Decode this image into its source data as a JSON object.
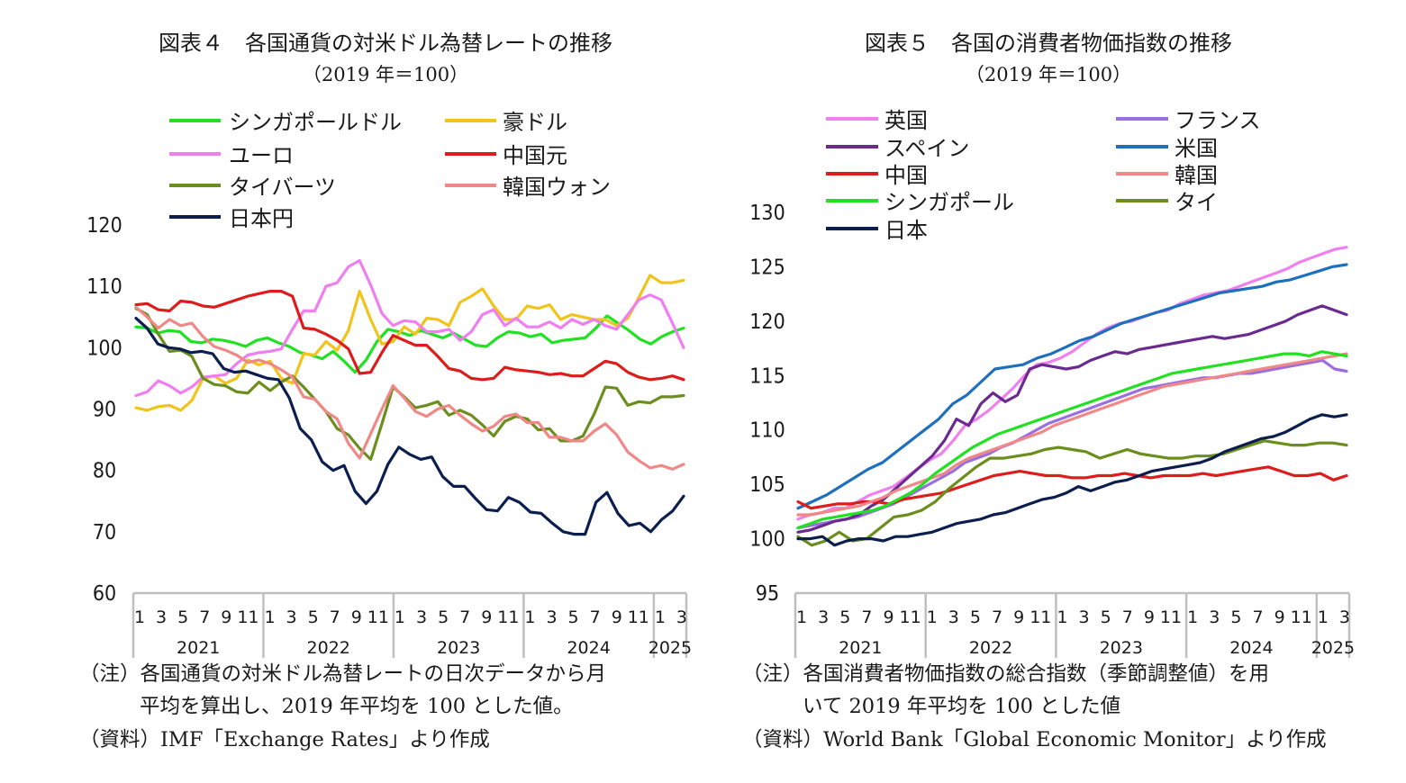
{
  "chart_data": [
    {
      "type": "line",
      "title": "図表４　各国通貨の対米ドル為替レートの推移",
      "subtitle": "（2019 年＝100）",
      "ylim": [
        60,
        120
      ],
      "yticks": [
        "60",
        "70",
        "80",
        "90",
        "100",
        "110",
        "120"
      ],
      "grid": false,
      "legend_position": "top",
      "month_labels": [
        "1",
        "3",
        "5",
        "7",
        "9",
        "11",
        "1",
        "3",
        "5",
        "7",
        "9",
        "11",
        "1",
        "3",
        "5",
        "7",
        "9",
        "11",
        "1",
        "3",
        "5",
        "7",
        "9",
        "11",
        "1",
        "3"
      ],
      "years": [
        "2021",
        "2022",
        "2023",
        "2024",
        "2025"
      ],
      "notes": [
        "（注）各国通貨の対米ドル為替レートの日次データから月",
        "平均を算出し、2019 年平均を 100 とした値。",
        "（資料）IMF「Exchange Rates」より作成"
      ],
      "series": [
        {
          "name": "シンガポールドル",
          "color": "#22e022",
          "values": [
            103.4,
            103.2,
            102.4,
            102.8,
            102.6,
            101.0,
            100.8,
            101.4,
            101.2,
            100.8,
            100.2,
            101.2,
            101.6,
            100.8,
            100.2,
            99.2,
            98.8,
            98.2,
            99.4,
            97.8,
            96.0,
            98.0,
            101.0,
            103.0,
            102.6,
            102.0,
            102.8,
            102.2,
            101.6,
            102.4,
            101.4,
            100.4,
            100.2,
            101.6,
            102.6,
            102.4,
            101.8,
            102.2,
            100.8,
            101.2,
            101.4,
            101.6,
            103.2,
            105.2,
            104.0,
            102.8,
            101.4,
            100.6,
            101.8,
            102.6,
            103.2
          ]
        },
        {
          "name": "豪ドル",
          "color": "#f0c41c",
          "values": [
            90.2,
            89.8,
            90.4,
            90.6,
            89.8,
            91.4,
            95.0,
            95.4,
            94.2,
            95.0,
            98.0,
            97.2,
            97.8,
            95.0,
            94.2,
            99.0,
            98.8,
            101.0,
            99.6,
            102.8,
            109.2,
            104.6,
            100.6,
            101.0,
            103.4,
            102.2,
            104.8,
            104.6,
            103.6,
            107.4,
            108.4,
            109.6,
            106.8,
            104.6,
            104.6,
            106.8,
            106.4,
            107.0,
            104.6,
            105.4,
            105.0,
            104.6,
            104.6,
            103.6,
            104.8,
            108.2,
            111.8,
            110.6,
            110.6,
            111.0
          ]
        },
        {
          "name": "ユーロ",
          "color": "#ef7ff0",
          "values": [
            92.2,
            92.8,
            94.6,
            93.8,
            92.6,
            93.6,
            95.2,
            95.4,
            95.6,
            97.4,
            98.8,
            99.2,
            99.4,
            99.8,
            103.0,
            106.0,
            106.0,
            110.0,
            110.6,
            113.2,
            114.2,
            110.2,
            105.6,
            103.6,
            104.4,
            104.2,
            102.6,
            102.6,
            103.0,
            101.2,
            102.6,
            105.4,
            106.2,
            103.6,
            104.8,
            103.4,
            103.4,
            104.2,
            103.2,
            104.6,
            103.8,
            104.6,
            103.6,
            103.0,
            105.4,
            107.8,
            108.6,
            107.8,
            104.0,
            100.0
          ]
        },
        {
          "name": "中国元",
          "color": "#dd1c1c",
          "values": [
            107.0,
            107.2,
            106.2,
            106.0,
            107.6,
            107.4,
            106.8,
            106.6,
            107.2,
            107.8,
            108.4,
            108.8,
            109.2,
            109.2,
            108.4,
            103.2,
            103.0,
            102.2,
            101.2,
            99.8,
            95.8,
            96.0,
            99.2,
            102.0,
            101.2,
            100.4,
            100.4,
            98.6,
            96.6,
            96.2,
            95.0,
            94.8,
            95.0,
            96.8,
            96.4,
            96.2,
            96.0,
            95.6,
            95.8,
            95.4,
            95.4,
            96.6,
            97.8,
            97.4,
            96.0,
            95.2,
            94.8,
            95.0,
            95.4,
            94.8
          ]
        },
        {
          "name": "タイバーツ",
          "color": "#6b8e1e",
          "values": [
            106.4,
            105.4,
            102.2,
            99.4,
            99.6,
            98.6,
            95.0,
            94.0,
            93.8,
            92.8,
            92.6,
            94.4,
            93.0,
            94.4,
            95.4,
            93.6,
            91.6,
            89.6,
            86.8,
            85.8,
            83.6,
            81.8,
            87.6,
            93.6,
            92.0,
            90.2,
            90.6,
            91.2,
            89.0,
            89.8,
            89.0,
            87.4,
            85.6,
            88.0,
            88.8,
            88.4,
            86.6,
            86.8,
            84.8,
            84.8,
            85.6,
            89.2,
            93.6,
            93.4,
            90.6,
            91.2,
            91.0,
            92.0,
            92.0,
            92.2
          ]
        },
        {
          "name": "韓国ウォン",
          "color": "#f08888",
          "values": [
            106.6,
            105.0,
            103.2,
            104.6,
            103.6,
            104.0,
            101.8,
            100.2,
            99.6,
            98.8,
            97.6,
            98.0,
            97.4,
            96.4,
            95.2,
            92.0,
            91.6,
            89.6,
            88.4,
            84.4,
            82.0,
            86.0,
            90.0,
            93.8,
            91.8,
            89.6,
            88.8,
            90.0,
            90.6,
            89.0,
            87.6,
            86.4,
            87.2,
            88.8,
            89.2,
            87.8,
            87.8,
            85.4,
            85.4,
            84.8,
            84.8,
            86.4,
            87.6,
            85.8,
            83.0,
            81.6,
            80.4,
            80.8,
            80.2,
            81.0
          ]
        },
        {
          "name": "日本円",
          "color": "#0b1e4e",
          "values": [
            104.8,
            103.2,
            100.6,
            100.0,
            99.8,
            99.2,
            99.4,
            99.0,
            96.6,
            96.0,
            96.2,
            95.6,
            95.0,
            94.8,
            91.8,
            86.8,
            85.0,
            81.4,
            80.0,
            80.8,
            76.6,
            74.6,
            76.6,
            81.0,
            83.8,
            82.6,
            81.8,
            82.2,
            79.0,
            77.4,
            77.4,
            75.4,
            73.6,
            73.4,
            75.6,
            74.8,
            73.2,
            73.0,
            71.4,
            70.0,
            69.6,
            69.6,
            74.8,
            76.4,
            73.0,
            71.0,
            71.4,
            70.0,
            72.0,
            73.4,
            75.8
          ]
        }
      ]
    },
    {
      "type": "line",
      "title": "図表５　各国の消費者物価指数の推移",
      "subtitle": "（2019 年＝100）",
      "ylim": [
        95,
        130
      ],
      "yticks": [
        "95",
        "100",
        "105",
        "110",
        "115",
        "120",
        "125",
        "130"
      ],
      "grid": false,
      "legend_position": "top",
      "month_labels": [
        "1",
        "3",
        "5",
        "7",
        "9",
        "11",
        "1",
        "3",
        "5",
        "7",
        "9",
        "11",
        "1",
        "3",
        "5",
        "7",
        "9",
        "11",
        "1",
        "3",
        "5",
        "7",
        "9",
        "11",
        "1",
        "3"
      ],
      "years": [
        "2021",
        "2022",
        "2023",
        "2024",
        "2025"
      ],
      "notes": [
        "（注）各国消費者物価指数の総合指数（季節調整値）を用",
        "いて 2019 年平均を 100 とした値",
        "（資料）World Bank「Global Economic Monitor」より作成"
      ],
      "series": [
        {
          "name": "英国",
          "color": "#f07ff0",
          "values": [
            101.8,
            102.2,
            102.4,
            102.8,
            102.8,
            103.4,
            104.0,
            104.4,
            104.8,
            105.6,
            106.4,
            107.2,
            107.8,
            109.0,
            110.4,
            111.0,
            111.8,
            112.8,
            113.8,
            115.0,
            116.0,
            116.2,
            116.6,
            117.2,
            118.0,
            118.8,
            119.4,
            119.8,
            120.0,
            120.4,
            120.8,
            121.0,
            121.6,
            122.0,
            122.4,
            122.6,
            122.8,
            123.2,
            123.6,
            124.0,
            124.4,
            124.8,
            125.4,
            125.8,
            126.2,
            126.6,
            126.8
          ]
        },
        {
          "name": "フランス",
          "color": "#9b6ee0",
          "values": [
            101.0,
            101.2,
            101.4,
            101.6,
            101.8,
            102.0,
            102.4,
            102.8,
            103.2,
            103.8,
            104.4,
            105.0,
            105.6,
            106.2,
            107.0,
            107.4,
            107.8,
            108.4,
            108.8,
            109.4,
            110.0,
            110.6,
            111.0,
            111.4,
            111.8,
            112.2,
            112.6,
            113.0,
            113.4,
            113.8,
            114.0,
            114.2,
            114.4,
            114.6,
            114.8,
            114.8,
            115.0,
            115.2,
            115.2,
            115.4,
            115.6,
            115.8,
            116.0,
            116.2,
            116.4,
            115.6,
            115.4
          ]
        },
        {
          "name": "スペイン",
          "color": "#6a2a8e",
          "values": [
            100.6,
            100.8,
            101.2,
            101.6,
            101.8,
            102.2,
            103.0,
            103.6,
            104.6,
            105.6,
            106.6,
            107.6,
            109.0,
            111.0,
            110.4,
            112.4,
            113.4,
            112.6,
            113.2,
            115.6,
            116.0,
            115.8,
            115.6,
            115.8,
            116.4,
            116.8,
            117.2,
            117.0,
            117.4,
            117.6,
            117.8,
            118.0,
            118.2,
            118.4,
            118.6,
            118.4,
            118.6,
            118.8,
            119.2,
            119.6,
            120.0,
            120.6,
            121.0,
            121.4,
            121.0,
            120.6
          ]
        },
        {
          "name": "米国",
          "color": "#1f6fbf",
          "values": [
            102.8,
            103.4,
            104.0,
            104.8,
            105.6,
            106.4,
            107.0,
            108.0,
            109.0,
            110.0,
            111.0,
            112.4,
            113.2,
            114.4,
            115.6,
            115.8,
            116.0,
            116.6,
            117.0,
            117.6,
            118.2,
            118.6,
            119.2,
            119.8,
            120.2,
            120.6,
            121.0,
            121.4,
            121.8,
            122.2,
            122.6,
            122.8,
            123.0,
            123.2,
            123.6,
            123.8,
            124.2,
            124.6,
            125.0,
            125.2
          ]
        },
        {
          "name": "中国",
          "color": "#dd1c1c",
          "values": [
            103.4,
            102.8,
            103.0,
            103.2,
            103.2,
            103.4,
            103.4,
            103.2,
            103.6,
            103.8,
            104.0,
            104.2,
            104.6,
            105.0,
            105.4,
            105.8,
            106.0,
            106.2,
            106.0,
            105.8,
            105.8,
            105.6,
            105.6,
            105.8,
            105.8,
            106.0,
            105.8,
            105.6,
            105.8,
            105.8,
            105.8,
            106.0,
            105.8,
            106.0,
            106.2,
            106.4,
            106.6,
            106.2,
            105.8,
            105.8,
            106.0,
            105.4,
            105.8
          ]
        },
        {
          "name": "韓国",
          "color": "#f08888",
          "values": [
            102.2,
            102.2,
            102.4,
            102.6,
            102.8,
            103.0,
            103.4,
            103.8,
            104.4,
            104.8,
            105.2,
            105.6,
            106.0,
            106.8,
            107.4,
            107.8,
            108.2,
            108.6,
            109.0,
            109.4,
            109.8,
            110.4,
            110.8,
            111.2,
            111.6,
            112.0,
            112.4,
            112.8,
            113.2,
            113.6,
            114.0,
            114.2,
            114.4,
            114.6,
            114.8,
            115.0,
            115.2,
            115.4,
            115.6,
            115.8,
            116.0,
            116.2,
            116.4,
            116.6,
            116.8,
            117.0
          ]
        },
        {
          "name": "シンガポール",
          "color": "#22e022",
          "values": [
            101.0,
            101.4,
            101.8,
            102.0,
            102.2,
            102.4,
            102.6,
            103.0,
            103.6,
            104.2,
            105.0,
            106.0,
            106.8,
            107.6,
            108.4,
            109.0,
            109.6,
            110.0,
            110.4,
            110.8,
            111.2,
            111.6,
            112.0,
            112.4,
            112.8,
            113.2,
            113.6,
            114.0,
            114.4,
            114.8,
            115.2,
            115.4,
            115.6,
            115.8,
            116.0,
            116.2,
            116.4,
            116.6,
            116.8,
            117.0,
            117.0,
            116.8,
            117.2,
            117.0,
            116.8
          ]
        },
        {
          "name": "タイ",
          "color": "#6b8e1e",
          "values": [
            100.2,
            99.4,
            99.8,
            100.6,
            99.8,
            100.0,
            101.0,
            102.0,
            102.2,
            102.6,
            103.4,
            104.6,
            105.6,
            106.6,
            107.4,
            107.4,
            107.6,
            107.8,
            108.2,
            108.4,
            108.2,
            108.0,
            107.4,
            107.8,
            108.2,
            107.8,
            107.6,
            107.4,
            107.4,
            107.6,
            107.6,
            107.8,
            108.2,
            108.6,
            109.0,
            108.8,
            108.6,
            108.6,
            108.8,
            108.8,
            108.6
          ]
        },
        {
          "name": "日本",
          "color": "#0b1e4e",
          "values": [
            100.0,
            100.0,
            100.2,
            99.4,
            99.8,
            100.0,
            100.0,
            99.8,
            100.2,
            100.2,
            100.4,
            100.6,
            101.0,
            101.4,
            101.6,
            101.8,
            102.2,
            102.4,
            102.8,
            103.2,
            103.6,
            103.8,
            104.2,
            104.8,
            104.4,
            104.8,
            105.2,
            105.4,
            105.8,
            106.2,
            106.4,
            106.6,
            106.8,
            107.0,
            107.4,
            108.0,
            108.4,
            108.8,
            109.2,
            109.4,
            109.8,
            110.4,
            111.0,
            111.4,
            111.2,
            111.4
          ]
        }
      ]
    }
  ]
}
